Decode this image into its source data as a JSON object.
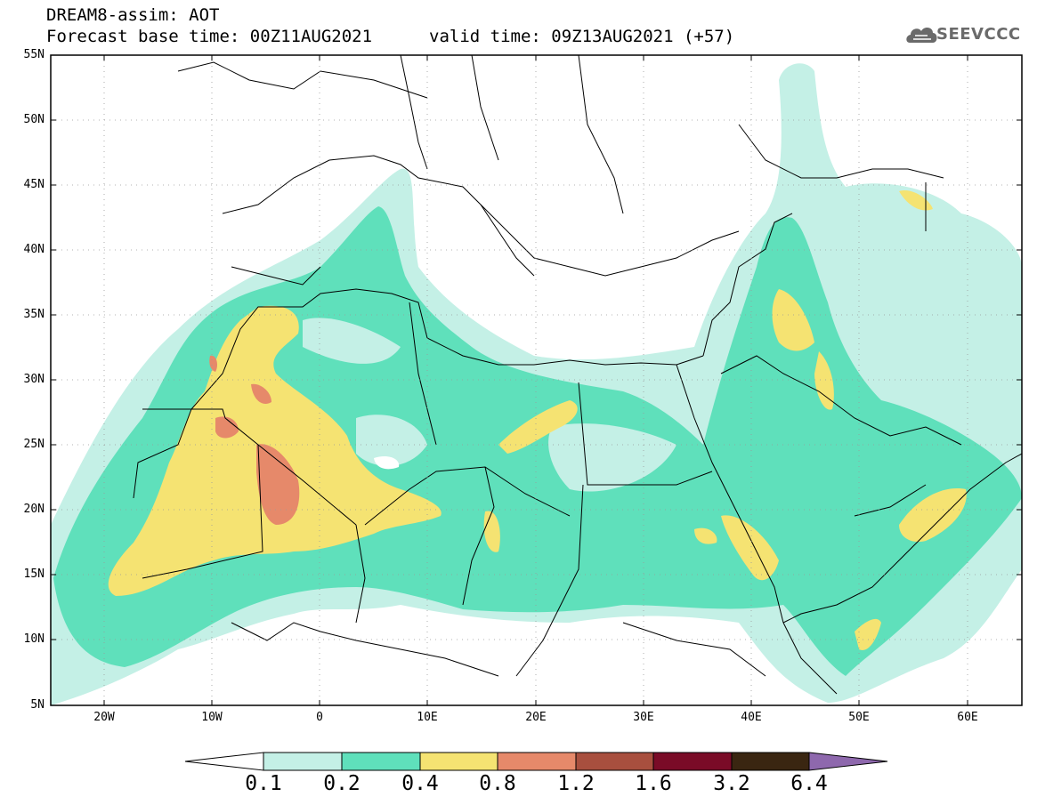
{
  "header": {
    "title": "DREAM8-assim: AOT",
    "base_time": "Forecast base time: 00Z11AUG2021",
    "valid_time": "valid time: 09Z13AUG2021 (+57)",
    "logo_text": "SEEVCCC"
  },
  "map": {
    "variable": "AOT",
    "region": {
      "lon_range": [
        -25,
        65
      ],
      "lat_range": [
        5,
        55
      ]
    },
    "lat_labels": [
      "55N",
      "50N",
      "45N",
      "40N",
      "35N",
      "30N",
      "25N",
      "20N",
      "15N",
      "10N",
      "5N"
    ],
    "lon_labels": [
      "20W",
      "10W",
      "0",
      "10E",
      "20E",
      "30E",
      "40E",
      "50E",
      "60E"
    ],
    "grid": true
  },
  "colorbar": {
    "levels": [
      "0.1",
      "0.2",
      "0.4",
      "0.8",
      "1.2",
      "1.6",
      "3.2",
      "6.4"
    ],
    "colors": [
      "#ffffff",
      "#c4f0e6",
      "#5fe0bb",
      "#f5e372",
      "#e6896a",
      "#a84f3e",
      "#7a0b27",
      "#3a2611",
      "#8e68ad"
    ]
  }
}
